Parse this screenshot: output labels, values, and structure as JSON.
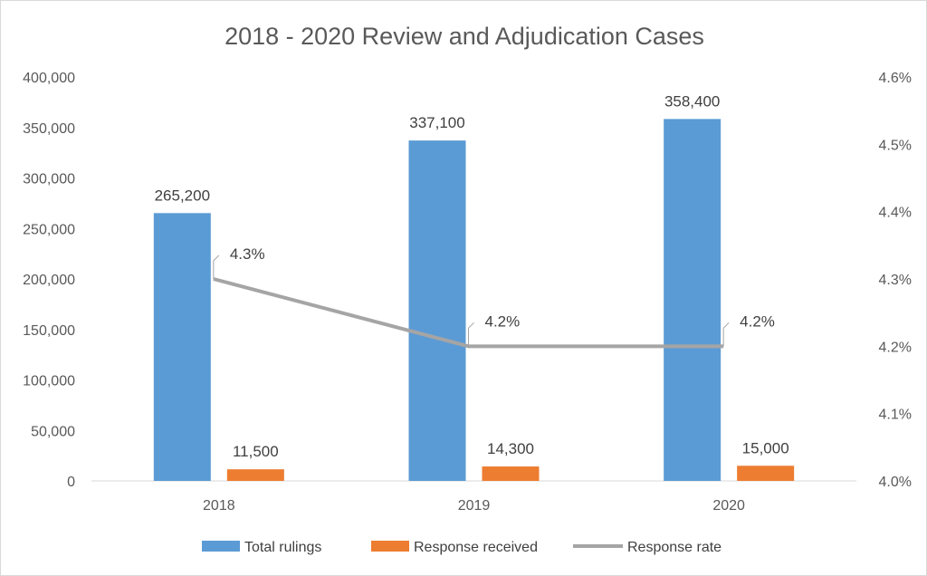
{
  "chart_data": {
    "type": "bar",
    "title": "2018 - 2020 Review and Adjudication Cases",
    "categories": [
      "2018",
      "2019",
      "2020"
    ],
    "series": [
      {
        "name": "Total rulings",
        "kind": "bar",
        "axis": "left",
        "color": "#5b9bd5",
        "values": [
          265200,
          337100,
          358400
        ],
        "labels": [
          "265,200",
          "337,100",
          "358,400"
        ]
      },
      {
        "name": "Response received",
        "kind": "bar",
        "axis": "left",
        "color": "#ed7d31",
        "values": [
          11500,
          14300,
          15000
        ],
        "labels": [
          "11,500",
          "14,300",
          "15,000"
        ]
      },
      {
        "name": "Response rate",
        "kind": "line",
        "axis": "right",
        "color": "#a5a5a5",
        "values": [
          4.3,
          4.2,
          4.2
        ],
        "labels": [
          "4.3%",
          "4.2%",
          "4.2%"
        ]
      }
    ],
    "y_left": {
      "min": 0,
      "max": 400000,
      "ticks": [
        "0",
        "50,000",
        "100,000",
        "150,000",
        "200,000",
        "250,000",
        "300,000",
        "350,000",
        "400,000"
      ]
    },
    "y_right": {
      "min": 4.0,
      "max": 4.6,
      "ticks": [
        "4.0%",
        "4.1%",
        "4.2%",
        "4.3%",
        "4.4%",
        "4.5%",
        "4.6%"
      ]
    },
    "grid": false,
    "legend_position": "bottom"
  }
}
